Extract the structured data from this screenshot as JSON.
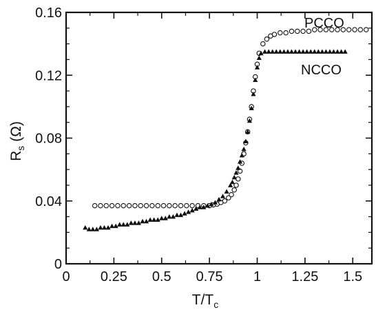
{
  "chart_data": {
    "type": "scatter",
    "xlabel": "T/T",
    "xlabel_sub": "c",
    "ylabel": "R",
    "ylabel_sub": "s",
    "ylabel_unit": "(Ω)",
    "xlim": [
      0,
      1.6
    ],
    "ylim": [
      0,
      0.16
    ],
    "x_ticks": [
      0,
      0.25,
      0.5,
      0.75,
      1,
      1.25,
      1.5
    ],
    "x_tick_labels": [
      "0",
      "0.25",
      "0.5",
      "0.75",
      "1",
      "1.25",
      "1.5"
    ],
    "y_ticks": [
      0,
      0.04,
      0.08,
      0.12,
      0.16
    ],
    "y_tick_labels": [
      "0",
      "0.04",
      "0.08",
      "0.12",
      "0.16"
    ],
    "grid": false,
    "legend": "none",
    "series": [
      {
        "name": "PCCO",
        "marker": "open-circle",
        "x": [
          0.15,
          0.18,
          0.21,
          0.24,
          0.27,
          0.3,
          0.33,
          0.36,
          0.39,
          0.42,
          0.45,
          0.48,
          0.51,
          0.54,
          0.57,
          0.6,
          0.63,
          0.66,
          0.69,
          0.72,
          0.75,
          0.77,
          0.79,
          0.81,
          0.83,
          0.85,
          0.865,
          0.88,
          0.89,
          0.9,
          0.91,
          0.92,
          0.93,
          0.94,
          0.95,
          0.96,
          0.97,
          0.98,
          0.99,
          1.0,
          1.01,
          1.03,
          1.05,
          1.07,
          1.09,
          1.12,
          1.15,
          1.18,
          1.21,
          1.24,
          1.27,
          1.3,
          1.33,
          1.36,
          1.39,
          1.42,
          1.45,
          1.48,
          1.51,
          1.54,
          1.57
        ],
        "y": [
          0.037,
          0.037,
          0.037,
          0.037,
          0.037,
          0.037,
          0.037,
          0.037,
          0.037,
          0.037,
          0.037,
          0.037,
          0.037,
          0.037,
          0.037,
          0.037,
          0.037,
          0.037,
          0.037,
          0.037,
          0.037,
          0.0375,
          0.038,
          0.039,
          0.04,
          0.042,
          0.044,
          0.047,
          0.05,
          0.054,
          0.059,
          0.064,
          0.07,
          0.077,
          0.084,
          0.092,
          0.1,
          0.11,
          0.119,
          0.127,
          0.134,
          0.14,
          0.143,
          0.145,
          0.146,
          0.147,
          0.147,
          0.148,
          0.148,
          0.148,
          0.148,
          0.149,
          0.149,
          0.149,
          0.149,
          0.149,
          0.149,
          0.149,
          0.149,
          0.149,
          0.149
        ]
      },
      {
        "name": "NCCO",
        "marker": "filled-triangle",
        "x": [
          0.1,
          0.12,
          0.14,
          0.16,
          0.18,
          0.2,
          0.22,
          0.24,
          0.26,
          0.28,
          0.3,
          0.32,
          0.34,
          0.36,
          0.38,
          0.4,
          0.42,
          0.44,
          0.46,
          0.48,
          0.5,
          0.52,
          0.54,
          0.56,
          0.58,
          0.6,
          0.62,
          0.64,
          0.66,
          0.68,
          0.7,
          0.72,
          0.74,
          0.76,
          0.78,
          0.8,
          0.82,
          0.84,
          0.86,
          0.87,
          0.88,
          0.89,
          0.9,
          0.91,
          0.92,
          0.93,
          0.94,
          0.95,
          0.96,
          0.97,
          0.98,
          0.99,
          1.0,
          1.01,
          1.02,
          1.04,
          1.06,
          1.08,
          1.1,
          1.12,
          1.14,
          1.16,
          1.18,
          1.2,
          1.22,
          1.24,
          1.26,
          1.28,
          1.3,
          1.32,
          1.34,
          1.36,
          1.38,
          1.4,
          1.42,
          1.44,
          1.46
        ],
        "y": [
          0.023,
          0.022,
          0.022,
          0.022,
          0.023,
          0.023,
          0.023,
          0.024,
          0.024,
          0.025,
          0.025,
          0.025,
          0.026,
          0.026,
          0.026,
          0.027,
          0.027,
          0.028,
          0.028,
          0.028,
          0.029,
          0.029,
          0.03,
          0.03,
          0.031,
          0.031,
          0.032,
          0.033,
          0.034,
          0.035,
          0.036,
          0.036,
          0.037,
          0.038,
          0.039,
          0.041,
          0.043,
          0.046,
          0.05,
          0.052,
          0.055,
          0.058,
          0.061,
          0.065,
          0.069,
          0.073,
          0.078,
          0.084,
          0.091,
          0.099,
          0.108,
          0.117,
          0.125,
          0.131,
          0.134,
          0.135,
          0.135,
          0.135,
          0.135,
          0.135,
          0.135,
          0.135,
          0.135,
          0.135,
          0.135,
          0.135,
          0.135,
          0.135,
          0.135,
          0.135,
          0.135,
          0.135,
          0.135,
          0.135,
          0.135,
          0.135,
          0.135
        ]
      }
    ]
  }
}
